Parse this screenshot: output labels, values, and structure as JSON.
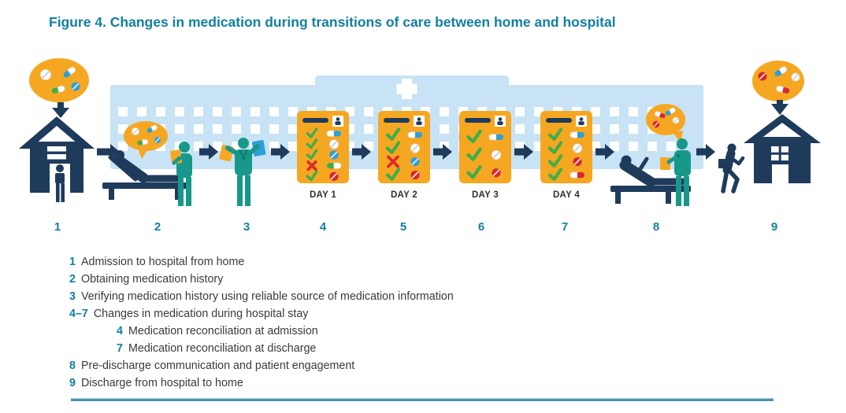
{
  "figure": {
    "title": "Figure 4. Changes in medication during transitions of care between home and hospital"
  },
  "step_numbers": [
    "1",
    "2",
    "3",
    "4",
    "5",
    "6",
    "7",
    "8",
    "9"
  ],
  "day_charts": [
    {
      "label": "DAY 1",
      "rows": [
        [
          "check",
          "capsule-blue"
        ],
        [
          "check",
          "pill-white"
        ],
        [
          "check",
          "pill-blue"
        ],
        [
          "x",
          "capsule-green"
        ],
        [
          "check",
          "pill-red"
        ]
      ]
    },
    {
      "label": "DAY 2",
      "rows": [
        [
          "check",
          "capsule-blue"
        ],
        [
          "check",
          "pill-white"
        ],
        [
          "x",
          "pill-blue"
        ],
        [
          "check",
          "pill-red"
        ]
      ]
    },
    {
      "label": "DAY 3",
      "rows": [
        [
          "check",
          "capsule-blue"
        ],
        [
          "check",
          "pill-white"
        ],
        [
          "check",
          "pill-red"
        ]
      ]
    },
    {
      "label": "DAY 4",
      "rows": [
        [
          "check",
          "capsule-blue"
        ],
        [
          "check",
          "pill-white"
        ],
        [
          "check",
          "pill-red"
        ],
        [
          "check",
          "capsule-red"
        ]
      ]
    }
  ],
  "legend": [
    {
      "number": "1",
      "text": "Admission to hospital from home",
      "indent": false
    },
    {
      "number": "2",
      "text": "Obtaining medication history",
      "indent": false
    },
    {
      "number": "3",
      "text": "Verifying medication history using reliable source of medication information",
      "indent": false
    },
    {
      "number": "4–7",
      "text": "Changes in medication during hospital stay",
      "indent": false
    },
    {
      "number": "4",
      "text": "Medication reconciliation at admission",
      "indent": true
    },
    {
      "number": "7",
      "text": "Medication reconciliation at discharge",
      "indent": true
    },
    {
      "number": "8",
      "text": "Pre-discharge communication and patient engagement",
      "indent": false
    },
    {
      "number": "9",
      "text": "Discharge from hospital to home",
      "indent": false
    }
  ],
  "colors": {
    "teal": "#127FA2",
    "navy": "#1F3B5C",
    "orange": "#F6A722",
    "building": "#C7E3F5",
    "clinician": "#17988A",
    "clinician_dark": "#0D7A6E",
    "green": "#3FAE49",
    "red": "#DB2B27",
    "pillred": "#D7282E",
    "blue": "#2D9FD8",
    "daylabel": "#2F2F2F",
    "text": "#3A3A3A",
    "rule": "#4A94AF"
  }
}
